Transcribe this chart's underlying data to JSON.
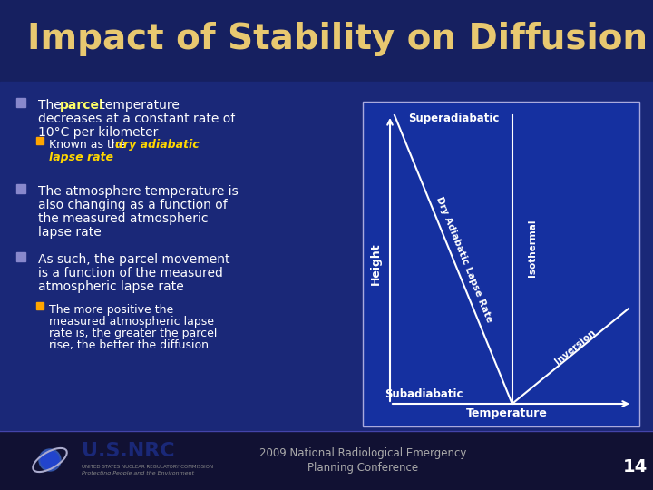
{
  "title": "Impact of Stability on Diffusion",
  "title_color": "#E8C870",
  "slide_bg": "#1a2a6e",
  "content_bg": "#1e3080",
  "text_color": "#FFFFFF",
  "highlight_color": "#FFFF66",
  "italic_color": "#FFD700",
  "orange_bullet": "#FFA500",
  "light_blue_bullet": "#8888CC",
  "diagram_bg": "#1530A0",
  "diagram_line_color": "#FFFFFF",
  "diagram_border_color": "#AAAADD",
  "footer_bg": "#111133",
  "footer_text_color": "#AAAAAA",
  "footer_text": "2009 National Radiological Emergency\nPlanning Conference",
  "footer_page": "14",
  "diagram_labels": {
    "superadiabatic": "Superadiabatic",
    "subadiabatic": "Subadiabatic",
    "temperature": "Temperature",
    "height": "Height",
    "dry_adiabatic": "Dry Adiabatic Lapse Rate",
    "isothermal": "Isothermal",
    "inversion": "Inversion"
  }
}
